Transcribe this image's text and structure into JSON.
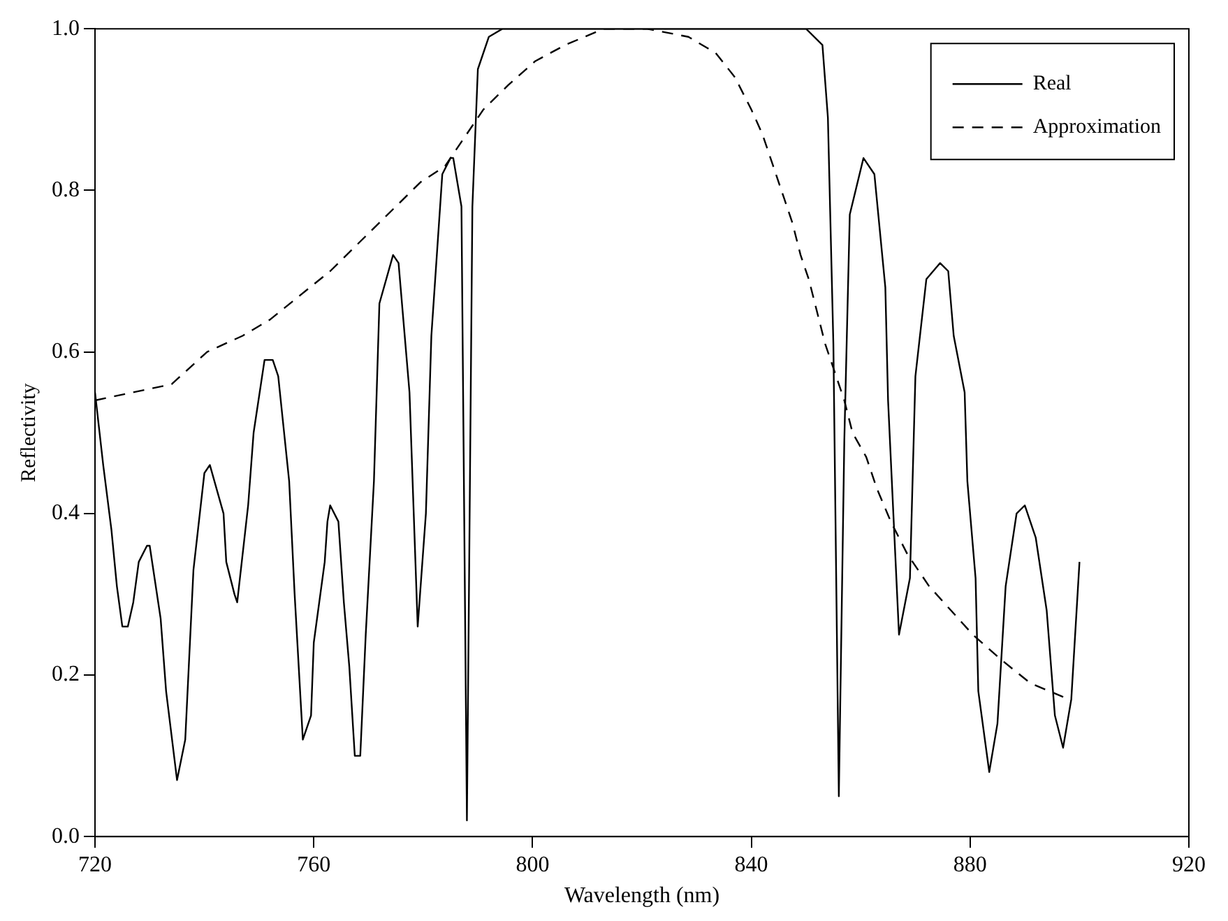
{
  "chart_data": {
    "type": "line",
    "xlabel": "Wavelength (nm)",
    "ylabel": "Reflectivity",
    "xlim": [
      720,
      920
    ],
    "ylim": [
      0,
      1
    ],
    "xticks": [
      720,
      760,
      800,
      840,
      880,
      920
    ],
    "yticks": [
      {
        "value": 0,
        "label": "0.0"
      },
      0.2,
      0.4,
      0.6,
      0.8,
      {
        "value": 1,
        "label": "1.0"
      }
    ],
    "grid": false,
    "legend": "top right",
    "marker": "none",
    "series": [
      {
        "name": "Real",
        "color": "#000000",
        "line_style": "solid",
        "x": [
          720,
          721.5,
          723,
          724,
          725,
          726,
          727,
          728,
          729.5,
          730,
          732,
          733,
          735,
          736.5,
          738,
          740,
          741,
          743.5,
          744,
          745.5,
          746,
          748,
          749,
          751,
          752.5,
          753.5,
          755.5,
          756.5,
          758,
          759.5,
          760,
          762,
          762.5,
          763,
          764.5,
          765.5,
          766.5,
          767.5,
          768.5,
          769.5,
          771,
          772,
          774.5,
          775.5,
          777.5,
          779,
          780.5,
          781.5,
          783.5,
          785,
          785.5,
          787,
          788,
          789,
          790,
          792,
          794.5,
          850,
          853,
          854,
          855,
          856,
          857,
          858,
          860.5,
          862.5,
          864.5,
          865,
          867,
          869,
          870,
          872,
          874.5,
          876,
          877,
          879,
          879.5,
          881,
          881.5,
          883.5,
          885,
          886.5,
          888.5,
          890,
          892,
          894,
          895.5,
          897,
          898.5,
          900
        ],
        "values": [
          0.55,
          0.46,
          0.38,
          0.31,
          0.26,
          0.26,
          0.29,
          0.34,
          0.36,
          0.36,
          0.27,
          0.18,
          0.07,
          0.12,
          0.33,
          0.45,
          0.46,
          0.4,
          0.34,
          0.3,
          0.29,
          0.41,
          0.5,
          0.59,
          0.59,
          0.57,
          0.44,
          0.3,
          0.12,
          0.15,
          0.24,
          0.34,
          0.39,
          0.41,
          0.39,
          0.29,
          0.21,
          0.1,
          0.1,
          0.25,
          0.44,
          0.66,
          0.72,
          0.71,
          0.55,
          0.26,
          0.4,
          0.62,
          0.82,
          0.84,
          0.84,
          0.78,
          0.02,
          0.78,
          0.95,
          0.99,
          1.0,
          1.0,
          0.98,
          0.89,
          0.61,
          0.05,
          0.49,
          0.77,
          0.84,
          0.82,
          0.68,
          0.54,
          0.25,
          0.32,
          0.57,
          0.69,
          0.71,
          0.7,
          0.62,
          0.55,
          0.44,
          0.32,
          0.18,
          0.08,
          0.14,
          0.31,
          0.4,
          0.41,
          0.37,
          0.28,
          0.15,
          0.11,
          0.17,
          0.34
        ]
      },
      {
        "name": "Approximation",
        "color": "#000000",
        "line_style": "dashed",
        "x": [
          720,
          727,
          734,
          740.5,
          747,
          752,
          757.5,
          763,
          767.5,
          770.5,
          775,
          779.5,
          784,
          788,
          791,
          795.5,
          800.5,
          806,
          813,
          821,
          828.5,
          833.5,
          837,
          840,
          842,
          844,
          846,
          847.5,
          849,
          850.5,
          852,
          853.5,
          855,
          857,
          858.5,
          861,
          863,
          865.5,
          868.5,
          872.5,
          876.5,
          880.5,
          885.5,
          891,
          898
        ],
        "values": [
          0.54,
          0.55,
          0.56,
          0.6,
          0.62,
          0.64,
          0.67,
          0.7,
          0.73,
          0.75,
          0.78,
          0.81,
          0.83,
          0.87,
          0.9,
          0.93,
          0.96,
          0.98,
          1.0,
          1.0,
          0.99,
          0.97,
          0.94,
          0.9,
          0.87,
          0.83,
          0.79,
          0.76,
          0.72,
          0.69,
          0.65,
          0.61,
          0.58,
          0.54,
          0.5,
          0.47,
          0.43,
          0.39,
          0.35,
          0.31,
          0.28,
          0.25,
          0.22,
          0.19,
          0.17
        ]
      }
    ]
  }
}
